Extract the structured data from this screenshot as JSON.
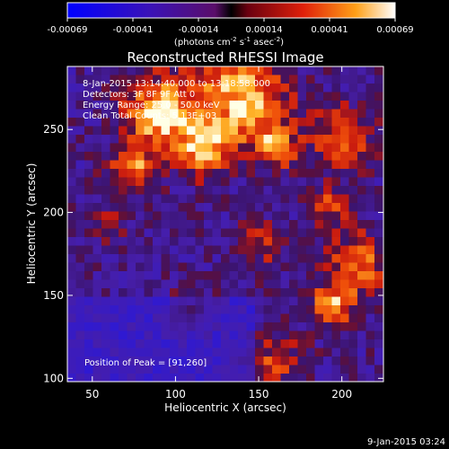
{
  "chart_data": {
    "type": "heatmap",
    "title": "Reconstructed RHESSI Image",
    "xlabel": "Heliocentric X (arcsec)",
    "ylabel": "Heliocentric Y (arcsec)",
    "xlim": [
      35,
      225
    ],
    "ylim": [
      98,
      288
    ],
    "x_ticks": [
      50,
      100,
      150,
      200
    ],
    "y_ticks": [
      100,
      150,
      200,
      250
    ],
    "grid": false,
    "colorbar": {
      "location": "top",
      "range": [
        -0.00069,
        0.00069
      ],
      "tick_labels": [
        "-0.00069",
        "-0.00041",
        "-0.00014",
        "0.00014",
        "0.00041",
        "0.00069"
      ],
      "unit_label": "(photons cm",
      "unit_sup1": "-2",
      "unit_mid1": " s",
      "unit_sup2": "-1",
      "unit_mid2": " asec",
      "unit_sup3": "-2",
      "unit_end": ")"
    },
    "annotations": [
      "8-Jan-2015 13:14:40.000 to 13:18:58.000",
      "Detectors: 3F 8F 9F  Att 0",
      "Energy Range: 25.0 - 50.0 keV",
      "Clean      Total Counts: 5.13E+03"
    ],
    "peak_label": "Position of Peak = [91,260]",
    "peak_position": [
      91,
      260
    ],
    "hotspots": [
      {
        "x": 91,
        "y": 260,
        "r": 22,
        "amp": 1.0
      },
      {
        "x": 140,
        "y": 270,
        "r": 26,
        "amp": 0.95
      },
      {
        "x": 118,
        "y": 238,
        "r": 16,
        "amp": 0.8
      },
      {
        "x": 160,
        "y": 240,
        "r": 14,
        "amp": 0.7
      },
      {
        "x": 75,
        "y": 225,
        "r": 14,
        "amp": 0.7
      },
      {
        "x": 200,
        "y": 245,
        "r": 18,
        "amp": 0.65
      },
      {
        "x": 192,
        "y": 205,
        "r": 12,
        "amp": 0.55
      },
      {
        "x": 210,
        "y": 170,
        "r": 18,
        "amp": 0.7
      },
      {
        "x": 195,
        "y": 145,
        "r": 14,
        "amp": 0.75
      },
      {
        "x": 160,
        "y": 110,
        "r": 16,
        "amp": 0.5
      },
      {
        "x": 110,
        "y": 140,
        "r": 12,
        "amp": 0.35
      },
      {
        "x": 60,
        "y": 190,
        "r": 10,
        "amp": 0.35
      },
      {
        "x": 150,
        "y": 180,
        "r": 14,
        "amp": 0.4
      }
    ],
    "colors": {
      "background": "#000000",
      "low": "#1b1bff",
      "zero": "#30108a",
      "mid": "#e0201a",
      "high": "#ffb020",
      "peak": "#ffffe8"
    }
  },
  "footer": {
    "date_stamp": "9-Jan-2015 03:24"
  }
}
